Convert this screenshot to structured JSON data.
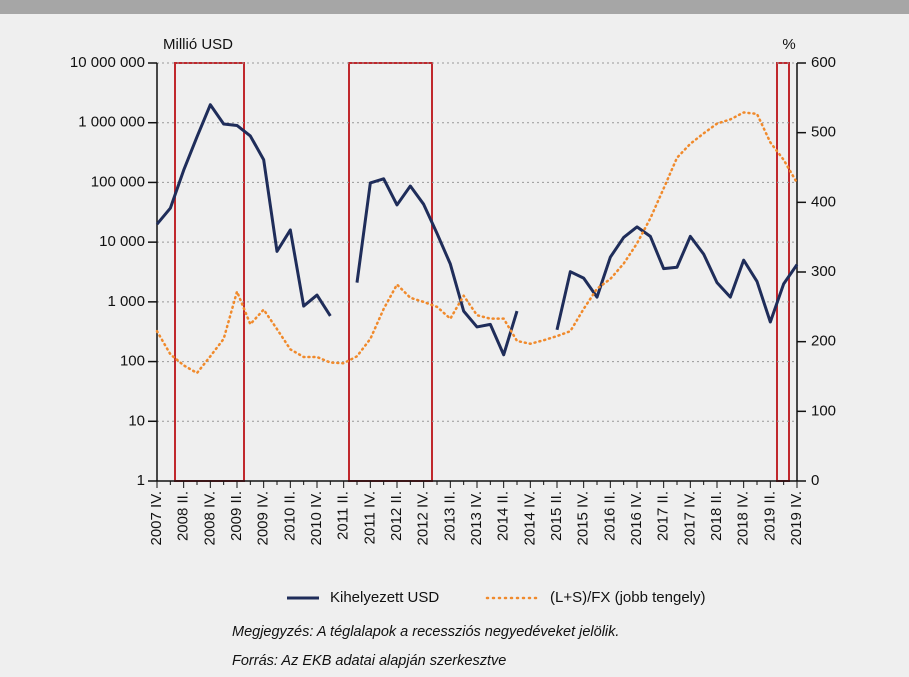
{
  "chart_data": {
    "type": "line",
    "y_label": "Millió USD",
    "y2_label": "%",
    "categories": [
      "2007 IV.",
      null,
      "2008 II.",
      null,
      "2008 IV.",
      null,
      "2009 II.",
      null,
      "2009 IV.",
      null,
      "2010 II.",
      null,
      "2010 IV.",
      null,
      "2011 II.",
      null,
      "2011 IV.",
      null,
      "2012 II.",
      null,
      "2012 IV.",
      null,
      "2013 II.",
      null,
      "2013 IV.",
      null,
      "2014 II.",
      null,
      "2014 IV.",
      null,
      "2015 II.",
      null,
      "2015 IV.",
      null,
      "2016 II.",
      null,
      "2016 IV.",
      null,
      "2017 II.",
      null,
      "2017 IV.",
      null,
      "2018 II.",
      null,
      "2018 IV.",
      null,
      "2019 II.",
      null,
      "2019 IV."
    ],
    "series": [
      {
        "name": "Kihelyezett USD",
        "color": "#1f2d5a",
        "style": "solid",
        "values": [
          20000,
          37000,
          160000,
          580000,
          2000000,
          950000,
          900000,
          600000,
          240000,
          7000,
          16000,
          850,
          1300,
          580,
          null,
          2100,
          98000,
          115000,
          42000,
          87000,
          43000,
          14000,
          4300,
          700,
          380,
          420,
          130,
          700,
          null,
          null,
          340,
          3200,
          2500,
          1200,
          5600,
          12000,
          18000,
          12500,
          3600,
          3800,
          12500,
          6300,
          2100,
          1200,
          5000,
          2200,
          460,
          2000,
          4200
        ]
      },
      {
        "name": "(L+S)/FX (jobb tengely)",
        "color": "#f08a2c",
        "style": "dotted",
        "axis": "y2",
        "values": [
          215,
          182,
          166,
          155,
          179,
          204,
          272,
          225,
          246,
          218,
          189,
          178,
          178,
          170,
          169,
          179,
          204,
          247,
          282,
          263,
          257,
          250,
          233,
          266,
          238,
          233,
          233,
          201,
          197,
          202,
          208,
          215,
          247,
          276,
          290,
          312,
          341,
          377,
          420,
          464,
          484,
          499,
          513,
          519,
          529,
          527,
          486,
          461,
          428
        ]
      }
    ],
    "ylim": [
      1,
      10000000
    ],
    "ylog": true,
    "yticks": [
      1,
      10,
      100,
      {
        "value": 1000,
        "label": "1 000"
      },
      {
        "value": 10000,
        "label": "10 000"
      },
      {
        "value": 100000,
        "label": "100 000"
      },
      {
        "value": 1000000,
        "label": "1 000 000"
      },
      {
        "value": 10000000,
        "label": "10 000 000"
      }
    ],
    "y2lim": [
      0,
      600
    ],
    "y2ticks": [
      0,
      100,
      200,
      300,
      400,
      500,
      600
    ],
    "grid": true,
    "notes": [
      "Megjegyzés: A téglalapok a recessziós negyedéveket jelölik.",
      "Forrás: Az EKB adatai alapján szerkesztve"
    ]
  }
}
